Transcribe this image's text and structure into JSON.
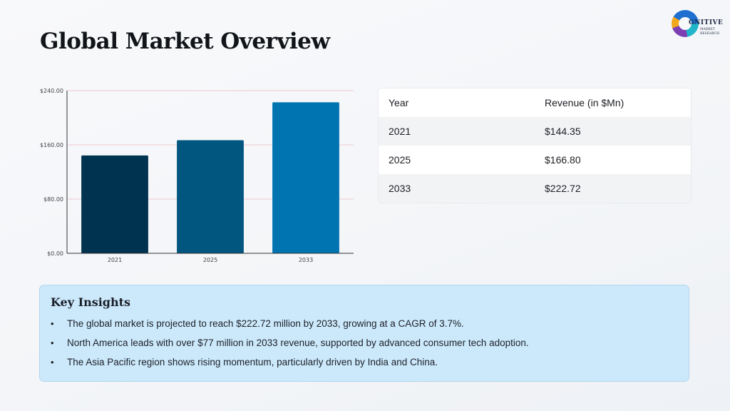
{
  "header": {
    "title": "Global Market Overview"
  },
  "logo": {
    "name": "GNITIVE",
    "sub_line1": "MARKET",
    "sub_line2": "RESEARCH"
  },
  "chart_data": {
    "type": "bar",
    "categories": [
      "2021",
      "2025",
      "2033"
    ],
    "values": [
      144.35,
      166.8,
      222.72
    ],
    "ylim": [
      0,
      240
    ],
    "yticks": [
      0,
      80,
      160,
      240
    ],
    "ytick_labels": [
      "$0.00",
      "$80.00",
      "$160.00",
      "$240.00"
    ],
    "colors": [
      "#00334f",
      "#00567f",
      "#0073b1"
    ],
    "gridline_color": "#f0c9cf",
    "grid": true
  },
  "table": {
    "headers": [
      "Year",
      "Revenue (in $Mn)"
    ],
    "rows": [
      [
        "2021",
        "$144.35"
      ],
      [
        "2025",
        "$166.80"
      ],
      [
        "2033",
        "$222.72"
      ]
    ]
  },
  "insights": {
    "title": "Key Insights",
    "items": [
      "The global market is projected to reach $222.72 million by 2033, growing at a CAGR of 3.7%.",
      "North America leads with over $77 million in 2033 revenue, supported by advanced consumer tech adoption.",
      "The Asia Pacific region shows rising momentum, particularly driven by India and China."
    ]
  }
}
